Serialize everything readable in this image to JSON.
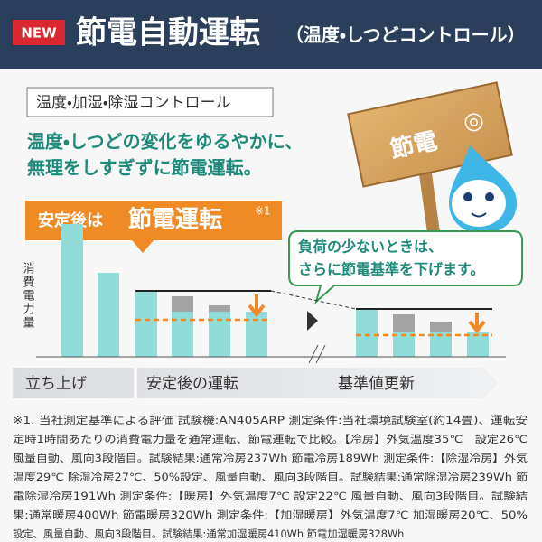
{
  "header": {
    "badge": "NEW",
    "title": "節電自動運転",
    "subtitle": "（温度・しつどコントロール）"
  },
  "control_label": "温度・加湿・除湿コントロール",
  "headline": [
    "温度・しつどの変化をゆるやかに、",
    "無理をしすぎずに節電運転。"
  ],
  "callout": {
    "lead": "安定後は",
    "main": "節電運転",
    "note": "※1"
  },
  "sign": {
    "text": "節電",
    "mark": "◎"
  },
  "bubble": [
    "負荷の少ないときは、",
    "さらに節電基準を下げます。"
  ],
  "y_label": "消費電力量",
  "phases": [
    "立ち上げ",
    "安定後の運転",
    "基準値更新"
  ],
  "footnote": {
    "lines": [
      "※1. 当社測定基準による評価 試験機:AN405ARP 測定条件:当社環境試験室(約14畳)、運転安",
      "定時1時間あたりの消費電力量を通常運転、節電運転で比較。【冷房】外気温度35℃　設定26℃",
      "風量自動、風向3段階目。試験結果:通常冷房237Wh 節電冷房189Wh 測定条件:【除湿冷房】外気",
      "温度29℃ 除湿冷房27℃、50%設定、風量自動、風向3段階目。試験結果:通常除湿冷房239Wh 節",
      "電除湿冷房191Wh 測定条件:【暖房】外気温度7℃ 設定22℃ 風量自動、風向3段階目。試験結",
      "果:通常暖房400Wh 節電暖房320Wh 測定条件:【加湿暖房】外気温度7℃ 加湿暖房20℃、50%",
      "設定、風量自動、風向3段階目。試験結果:通常加湿暖房410Wh 節電加湿暖房328Wh"
    ]
  }
}
